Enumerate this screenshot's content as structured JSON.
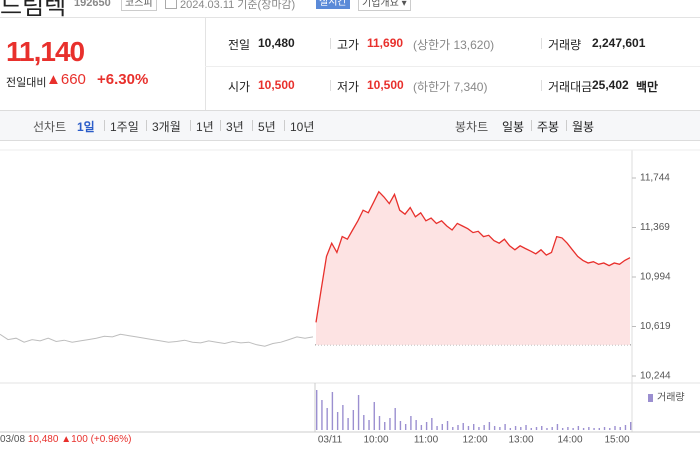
{
  "header": {
    "name": "드림텍",
    "code": "192650",
    "market": "코스피",
    "date": "2024.03.11 기준(장마감)",
    "realtime": "실시간",
    "company": "기업개요"
  },
  "quote": {
    "price": "11,140",
    "change_label": "전일대비",
    "change": "▲660",
    "rate": "+6.30%",
    "rows": [
      [
        {
          "label": "전일",
          "value": "10,480"
        },
        {
          "label": "고가",
          "value": "11,690",
          "extra": "(상한가 13,620)"
        },
        {
          "label": "거래량",
          "value": "2,247,601"
        }
      ],
      [
        {
          "label": "시가",
          "value": "10,500"
        },
        {
          "label": "저가",
          "value": "10,500",
          "extra": "(하한가 7,340)"
        },
        {
          "label": "거래대금",
          "value": "25,402",
          "unit": "백만"
        }
      ]
    ]
  },
  "tabs": {
    "line_label": "선차트",
    "line": [
      "1일",
      "1주일",
      "3개월",
      "1년",
      "3년",
      "5년",
      "10년"
    ],
    "selected": "1일",
    "candle_label": "봉차트",
    "candle": [
      "일봉",
      "주봉",
      "월봉"
    ]
  },
  "chart_data": {
    "type": "line",
    "xticks": [
      "03/08",
      "03/11",
      "10:00",
      "11:00",
      "12:00",
      "13:00",
      "14:00",
      "15:00"
    ],
    "ylim": [
      10244,
      11744
    ],
    "yticks": [
      {
        "value": 11744,
        "label": "11,744"
      },
      {
        "value": 11369,
        "label": "11,369"
      },
      {
        "value": 10994,
        "label": "10,994"
      },
      {
        "value": 10619,
        "label": "10,619"
      },
      {
        "value": 10244,
        "label": "10,244"
      }
    ],
    "baseline": 10480,
    "series": [
      {
        "color": "#bdbdbd",
        "values": [
          10560,
          10520,
          10530,
          10500,
          10520,
          10510,
          10530,
          10505,
          10515,
          10500,
          10510,
          10520,
          10530,
          10545,
          10540,
          10560,
          10550,
          10540,
          10530,
          10520,
          10510,
          10500,
          10505,
          10515,
          10500,
          10495,
          10510,
          10500,
          10490,
          10505,
          10495,
          10500,
          10480,
          10470,
          10490,
          10500,
          10520,
          10540,
          10530,
          10540
        ]
      },
      {
        "color": "#e8302c",
        "fill": "#fde3e3",
        "values": [
          10650,
          10900,
          11150,
          11250,
          11180,
          11300,
          11280,
          11350,
          11420,
          11500,
          11480,
          11560,
          11640,
          11600,
          11550,
          11620,
          11500,
          11470,
          11520,
          11450,
          11480,
          11420,
          11440,
          11400,
          11420,
          11380,
          11350,
          11400,
          11380,
          11360,
          11330,
          11340,
          11300,
          11310,
          11270,
          11250,
          11280,
          11230,
          11200,
          11230,
          11210,
          11190,
          11170,
          11200,
          11160,
          11180,
          11300,
          11290,
          11250,
          11200,
          11150,
          11120,
          11100,
          11110,
          11090,
          11100,
          11080,
          11100,
          11090,
          11120,
          11140
        ]
      }
    ],
    "volume": {
      "name": "거래량",
      "color": "#9b8fd0",
      "values": [
        40,
        30,
        22,
        38,
        18,
        25,
        12,
        20,
        35,
        15,
        10,
        28,
        14,
        8,
        12,
        22,
        9,
        6,
        14,
        10,
        5,
        8,
        12,
        4,
        6,
        9,
        3,
        5,
        7,
        4,
        6,
        3,
        5,
        8,
        4,
        3,
        6,
        2,
        4,
        3,
        5,
        2,
        3,
        4,
        2,
        3,
        6,
        2,
        3,
        2,
        4,
        2,
        3,
        2,
        2,
        3,
        2,
        4,
        3,
        5,
        8
      ]
    },
    "footer": {
      "date": "03/08",
      "price": "10,480",
      "change": "▲100",
      "rate": "(+0.96%)"
    }
  }
}
